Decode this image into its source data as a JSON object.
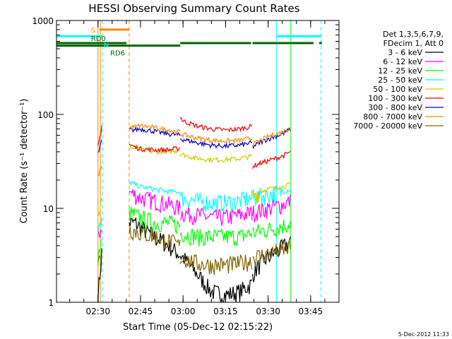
{
  "chart_data": {
    "type": "line",
    "title": "HESSI Observing Summary Count Rates",
    "xlabel": "Start Time (05-Dec-12 02:15:22)",
    "ylabel": "Count Rate (s⁻¹ detector⁻¹)",
    "y_scale": "log",
    "ylim": [
      1,
      1000
    ],
    "xlim": [
      "02:15:22",
      "03:55:00"
    ],
    "x_ticks": [
      "02:30",
      "02:45",
      "03:00",
      "03:15",
      "03:30",
      "03:45"
    ],
    "y_ticks": [
      "1",
      "10",
      "100",
      "1000"
    ],
    "legend_header": [
      "Det 1,3,5,6,7,9,",
      "FDecim 1, Att 0"
    ],
    "legend_position": "right",
    "footer": "5-Dec-2012 11:33",
    "series": [
      {
        "name": "3 - 6 keV",
        "color": "#000000",
        "segments": [
          {
            "t": [
              "02:30:00",
              "02:31:00",
              "02:31:30"
            ],
            "v": [
              1.2,
              2.5,
              4
            ]
          },
          {
            "t": [
              "02:41:00",
              "02:43:00",
              "02:46:00",
              "02:50:00",
              "02:55:00",
              "03:00:00",
              "03:05:00",
              "03:10:00",
              "03:15:00",
              "03:20:00",
              "03:24:30"
            ],
            "v": [
              7,
              7,
              6,
              5,
              4,
              3,
              2,
              1.3,
              1.2,
              1.3,
              1.6
            ]
          },
          {
            "t": [
              "03:24:30",
              "03:27:00",
              "03:30:00",
              "03:33:00",
              "03:36:00",
              "03:38:00"
            ],
            "v": [
              2,
              2.5,
              3,
              3.5,
              4,
              4.5
            ]
          }
        ]
      },
      {
        "name": "6 - 12 keV",
        "color": "#ff00ff",
        "segments": [
          {
            "t": [
              "02:30:00",
              "02:31:00",
              "02:31:30"
            ],
            "v": [
              5,
              6,
              7
            ]
          },
          {
            "t": [
              "02:41:00",
              "02:45:00",
              "02:50:00",
              "02:55:00",
              "02:59:00"
            ],
            "v": [
              15,
              13,
              12,
              11,
              10
            ]
          },
          {
            "t": [
              "02:59:00",
              "03:05:00",
              "03:10:00",
              "03:15:00",
              "03:20:00",
              "03:24:30"
            ],
            "v": [
              9,
              8.5,
              8,
              8,
              8.5,
              9
            ]
          },
          {
            "t": [
              "03:24:30",
              "03:30:00",
              "03:35:00",
              "03:38:00"
            ],
            "v": [
              9,
              10,
              11,
              12
            ]
          }
        ]
      },
      {
        "name": "12 - 25 keV",
        "color": "#00ff00",
        "segments": [
          {
            "t": [
              "02:30:00",
              "02:31:00",
              "02:31:30"
            ],
            "v": [
              3,
              4,
              4.5
            ]
          },
          {
            "t": [
              "02:41:00",
              "02:45:00",
              "02:50:00",
              "02:55:00",
              "02:59:00"
            ],
            "v": [
              9,
              8,
              7,
              7,
              6.5
            ]
          },
          {
            "t": [
              "02:59:00",
              "03:05:00",
              "03:10:00",
              "03:15:00",
              "03:20:00",
              "03:24:30"
            ],
            "v": [
              5.5,
              5,
              5,
              5,
              5,
              5.5
            ]
          },
          {
            "t": [
              "03:24:30",
              "03:30:00",
              "03:35:00",
              "03:38:00"
            ],
            "v": [
              5.5,
              6,
              6.5,
              7
            ]
          }
        ]
      },
      {
        "name": "25 - 50 keV",
        "color": "#00ffff",
        "segments": [
          {
            "t": [
              "02:30:00",
              "02:31:00",
              "02:31:30"
            ],
            "v": [
              5.5,
              6.5,
              7
            ]
          },
          {
            "t": [
              "02:41:00",
              "02:45:00",
              "02:50:00",
              "02:55:00",
              "02:59:00"
            ],
            "v": [
              19,
              17,
              16,
              15,
              15
            ]
          },
          {
            "t": [
              "02:59:00",
              "03:05:00",
              "03:10:00",
              "03:15:00",
              "03:20:00",
              "03:24:30"
            ],
            "v": [
              13,
              12,
              11.5,
              11.5,
              12,
              13
            ]
          },
          {
            "t": [
              "03:24:30",
              "03:30:00",
              "03:35:00",
              "03:38:00"
            ],
            "v": [
              13,
              14,
              15,
              16
            ]
          }
        ]
      },
      {
        "name": "50 - 100 keV",
        "color": "#cccc00",
        "segments": [
          {
            "t": [
              "02:30:00",
              "02:31:00",
              "02:31:30"
            ],
            "v": [
              9,
              11,
              12
            ]
          },
          {
            "t": [
              "02:41:00",
              "02:45:00",
              "02:50:00",
              "02:55:00",
              "02:59:00"
            ],
            "v": [
              45,
              42,
              40,
              40,
              42
            ]
          },
          {
            "t": [
              "02:59:00",
              "03:05:00",
              "03:10:00",
              "03:15:00",
              "03:20:00",
              "03:24:30"
            ],
            "v": [
              38,
              34,
              33,
              33,
              34,
              36
            ]
          },
          {
            "t": [
              "03:24:30",
              "03:27:00",
              "03:30:00",
              "03:35:00",
              "03:38:00"
            ],
            "v": [
              14,
              15,
              16,
              17,
              18
            ]
          }
        ]
      },
      {
        "name": "100 - 300 keV",
        "color": "#ff0000",
        "segments": [
          {
            "t": [
              "02:30:00",
              "02:31:00",
              "02:31:30"
            ],
            "v": [
              45,
              65,
              85
            ]
          },
          {
            "t": [
              "02:41:00",
              "02:43:00",
              "02:45:00",
              "02:50:00",
              "02:55:00",
              "02:59:00"
            ],
            "v": [
              48,
              45,
              43,
              42,
              42,
              44
            ]
          },
          {
            "t": [
              "02:59:00",
              "03:00:00",
              "03:05:00",
              "03:10:00",
              "03:15:00",
              "03:20:00",
              "03:24:30"
            ],
            "v": [
              95,
              85,
              75,
              70,
              68,
              70,
              75
            ]
          },
          {
            "t": [
              "03:24:30",
              "03:27:00",
              "03:30:00",
              "03:35:00",
              "03:38:00"
            ],
            "v": [
              28,
              30,
              32,
              36,
              40
            ]
          }
        ]
      },
      {
        "name": "300 - 800 keV",
        "color": "#0000cc",
        "segments": [
          {
            "t": [
              "02:30:00",
              "02:31:00",
              "02:31:30"
            ],
            "v": [
              38,
              48,
              55
            ]
          },
          {
            "t": [
              "02:41:00",
              "02:45:00",
              "02:50:00",
              "02:55:00",
              "02:59:00"
            ],
            "v": [
              68,
              70,
              66,
              62,
              60
            ]
          },
          {
            "t": [
              "02:59:00",
              "03:05:00",
              "03:10:00",
              "03:15:00",
              "03:20:00",
              "03:24:30"
            ],
            "v": [
              55,
              50,
              47,
              46,
              47,
              50
            ]
          },
          {
            "t": [
              "03:24:30",
              "03:27:00",
              "03:30:00",
              "03:35:00",
              "03:38:00"
            ],
            "v": [
              45,
              50,
              55,
              62,
              70
            ]
          }
        ]
      },
      {
        "name": "800 - 7000 keV",
        "color": "#ff8800",
        "segments": [
          {
            "t": [
              "02:30:00",
              "02:31:00",
              "02:31:30"
            ],
            "v": [
              22,
              27,
              30
            ]
          },
          {
            "t": [
              "02:41:00",
              "02:45:00",
              "02:50:00",
              "02:55:00",
              "02:59:00"
            ],
            "v": [
              72,
              76,
              72,
              68,
              65
            ]
          },
          {
            "t": [
              "02:59:00",
              "03:05:00",
              "03:10:00",
              "03:15:00",
              "03:20:00",
              "03:24:30"
            ],
            "v": [
              62,
              56,
              53,
              52,
              53,
              56
            ]
          },
          {
            "t": [
              "03:24:30",
              "03:27:00",
              "03:30:00",
              "03:35:00",
              "03:38:00"
            ],
            "v": [
              48,
              52,
              58,
              65,
              72
            ]
          }
        ]
      },
      {
        "name": "7000 - 20000 keV",
        "color": "#806600",
        "segments": [
          {
            "t": [
              "02:30:00",
              "02:31:00",
              "02:31:30"
            ],
            "v": [
              2.5,
              3.2,
              3.5
            ]
          },
          {
            "t": [
              "02:41:00",
              "02:45:00",
              "02:50:00",
              "02:55:00",
              "02:59:00"
            ],
            "v": [
              6,
              5.5,
              5,
              4.5,
              4
            ]
          },
          {
            "t": [
              "02:59:00",
              "03:05:00",
              "03:10:00",
              "03:15:00",
              "03:20:00",
              "03:24:30"
            ],
            "v": [
              3,
              2.6,
              2.5,
              2.5,
              2.6,
              2.8
            ]
          },
          {
            "t": [
              "03:24:30",
              "03:30:00",
              "03:35:00",
              "03:38:00"
            ],
            "v": [
              3,
              3.3,
              3.6,
              3.9
            ]
          }
        ]
      }
    ],
    "markers": [
      {
        "label": "S",
        "color": "#ff8800",
        "style": "solid-bar",
        "start": "02:30:30",
        "end": "02:41:00",
        "level": 800
      },
      {
        "label": "N",
        "color": "#00ffff",
        "style": "solid-bar",
        "start": "02:15:22",
        "end": "02:31:30",
        "level": 680
      },
      {
        "label": "",
        "color": "#00ffff",
        "style": "solid-bar",
        "start": "03:33:00",
        "end": "03:48:40",
        "level": 680
      },
      {
        "label": "RD0",
        "color": "#006600",
        "style": "solid-bar",
        "level": 575,
        "bars": [
          [
            "02:15:22",
            "02:40:00"
          ],
          [
            "02:59:00",
            "03:24:00"
          ],
          [
            "03:24:30",
            "03:46:00"
          ],
          [
            "03:48:00",
            "03:49:00"
          ]
        ]
      },
      {
        "label": "RD6",
        "color": "#006600",
        "style": "solid-bar",
        "start": "02:15:22",
        "end": "02:59:00",
        "level": 540
      }
    ],
    "vlines": [
      {
        "t": "02:15:22",
        "color": "#00ffff",
        "style": "solid"
      },
      {
        "t": "02:30:00",
        "color": "#ff8800",
        "style": "solid"
      },
      {
        "t": "02:30:50",
        "color": "#ff8800",
        "style": "solid"
      },
      {
        "t": "02:31:30",
        "color": "#00ffff",
        "style": "dashed"
      },
      {
        "t": "02:41:00",
        "color": "#ff8800",
        "style": "dashed"
      },
      {
        "t": "03:33:00",
        "color": "#00ffff",
        "style": "solid"
      },
      {
        "t": "03:38:00",
        "color": "#00ff00",
        "style": "solid"
      },
      {
        "t": "03:48:40",
        "color": "#00ffff",
        "style": "dashed"
      }
    ]
  }
}
